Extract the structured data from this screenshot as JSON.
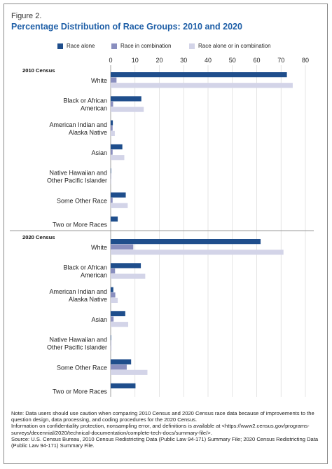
{
  "figure_label": "Figure 2.",
  "title": "Percentage Distribution of Race Groups: 2010 and 2020",
  "colors": {
    "race_alone": "#1f4e8c",
    "race_in_combination": "#8a8fbf",
    "race_alone_or_in_combination": "#d3d4e8",
    "title": "#1f5fa7",
    "grid": "#d9d9d9",
    "axis": "#999999"
  },
  "chart_data": {
    "type": "bar",
    "orientation": "horizontal",
    "xlim": [
      0,
      80
    ],
    "xticks": [
      0,
      10,
      20,
      30,
      40,
      50,
      60,
      70,
      80
    ],
    "grid": true,
    "legend_position": "top",
    "categories": [
      "White",
      "Black or African American",
      "American Indian and Alaska Native",
      "Asian",
      "Native Hawaiian and Other Pacific Islander",
      "Some Other Race",
      "Two or More Races"
    ],
    "category_lines": [
      [
        "White"
      ],
      [
        "Black or African",
        "American"
      ],
      [
        "American Indian and",
        "Alaska Native"
      ],
      [
        "Asian"
      ],
      [
        "Native Hawaiian and",
        "Other Pacific Islander"
      ],
      [
        "Some Other Race"
      ],
      [
        "Two or More Races"
      ]
    ],
    "series_names": [
      "Race alone",
      "Race in combination",
      "Race alone or in combination"
    ],
    "panels": [
      {
        "label": "2010 Census",
        "series": [
          {
            "name": "Race alone",
            "values": [
              72.4,
              12.6,
              0.9,
              4.8,
              0.2,
              6.2,
              2.9
            ]
          },
          {
            "name": "Race in combination",
            "values": [
              2.4,
              1.0,
              0.8,
              0.8,
              0.1,
              0.8,
              null
            ]
          },
          {
            "name": "Race alone or in combination",
            "values": [
              74.8,
              13.6,
              1.7,
              5.6,
              0.3,
              7.0,
              null
            ]
          }
        ]
      },
      {
        "label": "2020 Census",
        "series": [
          {
            "name": "Race alone",
            "values": [
              61.6,
              12.4,
              1.1,
              6.0,
              0.2,
              8.4,
              10.2
            ]
          },
          {
            "name": "Race in combination",
            "values": [
              9.3,
              1.8,
              1.9,
              1.2,
              0.2,
              6.6,
              null
            ]
          },
          {
            "name": "Race alone or in combination",
            "values": [
              71.0,
              14.2,
              2.9,
              7.2,
              0.4,
              15.1,
              null
            ]
          }
        ]
      }
    ]
  },
  "notes": [
    "Note: Data users should use caution when comparing 2010 Census and 2020 Census race data because of improvements to the question design, data processing, and coding procedures for the 2020 Census.",
    "Information on confidentiality protection, nonsampling error, and definitions is available at <https://www2.census.gov/programs-surveys/decennial/2020/technical-documentation/complete-tech-docs/summary-file/>.",
    "Source: U.S. Census Bureau, 2010 Census Redistricting Data (Public Law 94-171) Summary File; 2020 Census Redistricting Data (Public Law 94-171) Summary File."
  ]
}
